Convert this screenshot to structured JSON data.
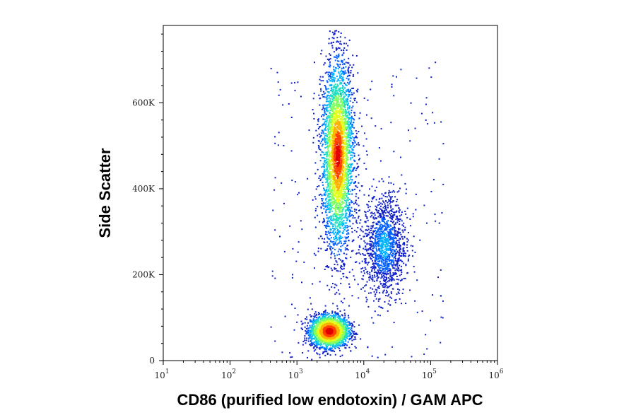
{
  "chart_data": {
    "type": "scatter",
    "plot_style": "density dot plot (flow cytometry)",
    "xlabel": "CD86 (purified low endotoxin) / GAM APC",
    "ylabel": "Side Scatter",
    "x_scale": "log",
    "xlim": [
      10,
      1000000
    ],
    "ylim": [
      0,
      780000
    ],
    "x_ticks": [
      {
        "value": 10,
        "base": "10",
        "exp": "1"
      },
      {
        "value": 100,
        "base": "10",
        "exp": "2"
      },
      {
        "value": 1000,
        "base": "10",
        "exp": "3"
      },
      {
        "value": 10000,
        "base": "10",
        "exp": "4"
      },
      {
        "value": 100000,
        "base": "10",
        "exp": "5"
      },
      {
        "value": 1000000,
        "base": "10",
        "exp": "6"
      }
    ],
    "y_ticks": [
      {
        "value": 0,
        "label": "0"
      },
      {
        "value": 200000,
        "label": "200K"
      },
      {
        "value": 400000,
        "label": "400K"
      },
      {
        "value": 600000,
        "label": "600K"
      }
    ],
    "colormap": [
      "#1020c8",
      "#0060ff",
      "#00b0ff",
      "#20e0c0",
      "#80ff60",
      "#e0ff20",
      "#ffb000",
      "#ff4000",
      "#e00000"
    ],
    "populations": [
      {
        "center_x": 3000,
        "center_y": 70000,
        "spread_log_x": 0.14,
        "spread_y": 18000,
        "density": "highest"
      },
      {
        "center_x": 4000,
        "center_y": 480000,
        "spread_log_x": 0.12,
        "spread_y": 110000,
        "density": "high"
      },
      {
        "center_x": 20000,
        "center_y": 270000,
        "spread_log_x": 0.16,
        "spread_y": 60000,
        "density": "medium"
      }
    ],
    "grid": false,
    "legend": "none"
  }
}
